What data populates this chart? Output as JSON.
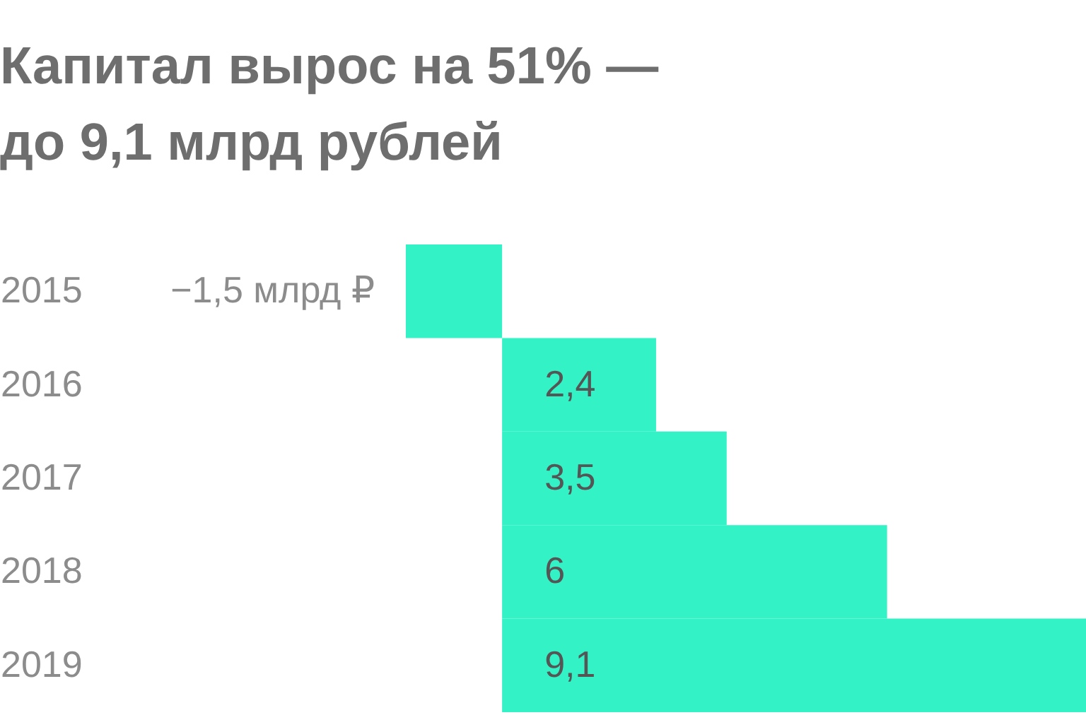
{
  "chart_data": {
    "type": "bar",
    "orientation": "horizontal",
    "title": "Капитал вырос на 51% —\nдо 9,1 млрд рублей",
    "categories": [
      "2015",
      "2016",
      "2017",
      "2018",
      "2019"
    ],
    "values": [
      -1.5,
      2.4,
      3.5,
      6,
      9.1
    ],
    "value_labels": [
      "−1,5 млрд ₽",
      "2,4",
      "3,5",
      "6",
      "9,1"
    ],
    "color": "#33f3c6"
  }
}
